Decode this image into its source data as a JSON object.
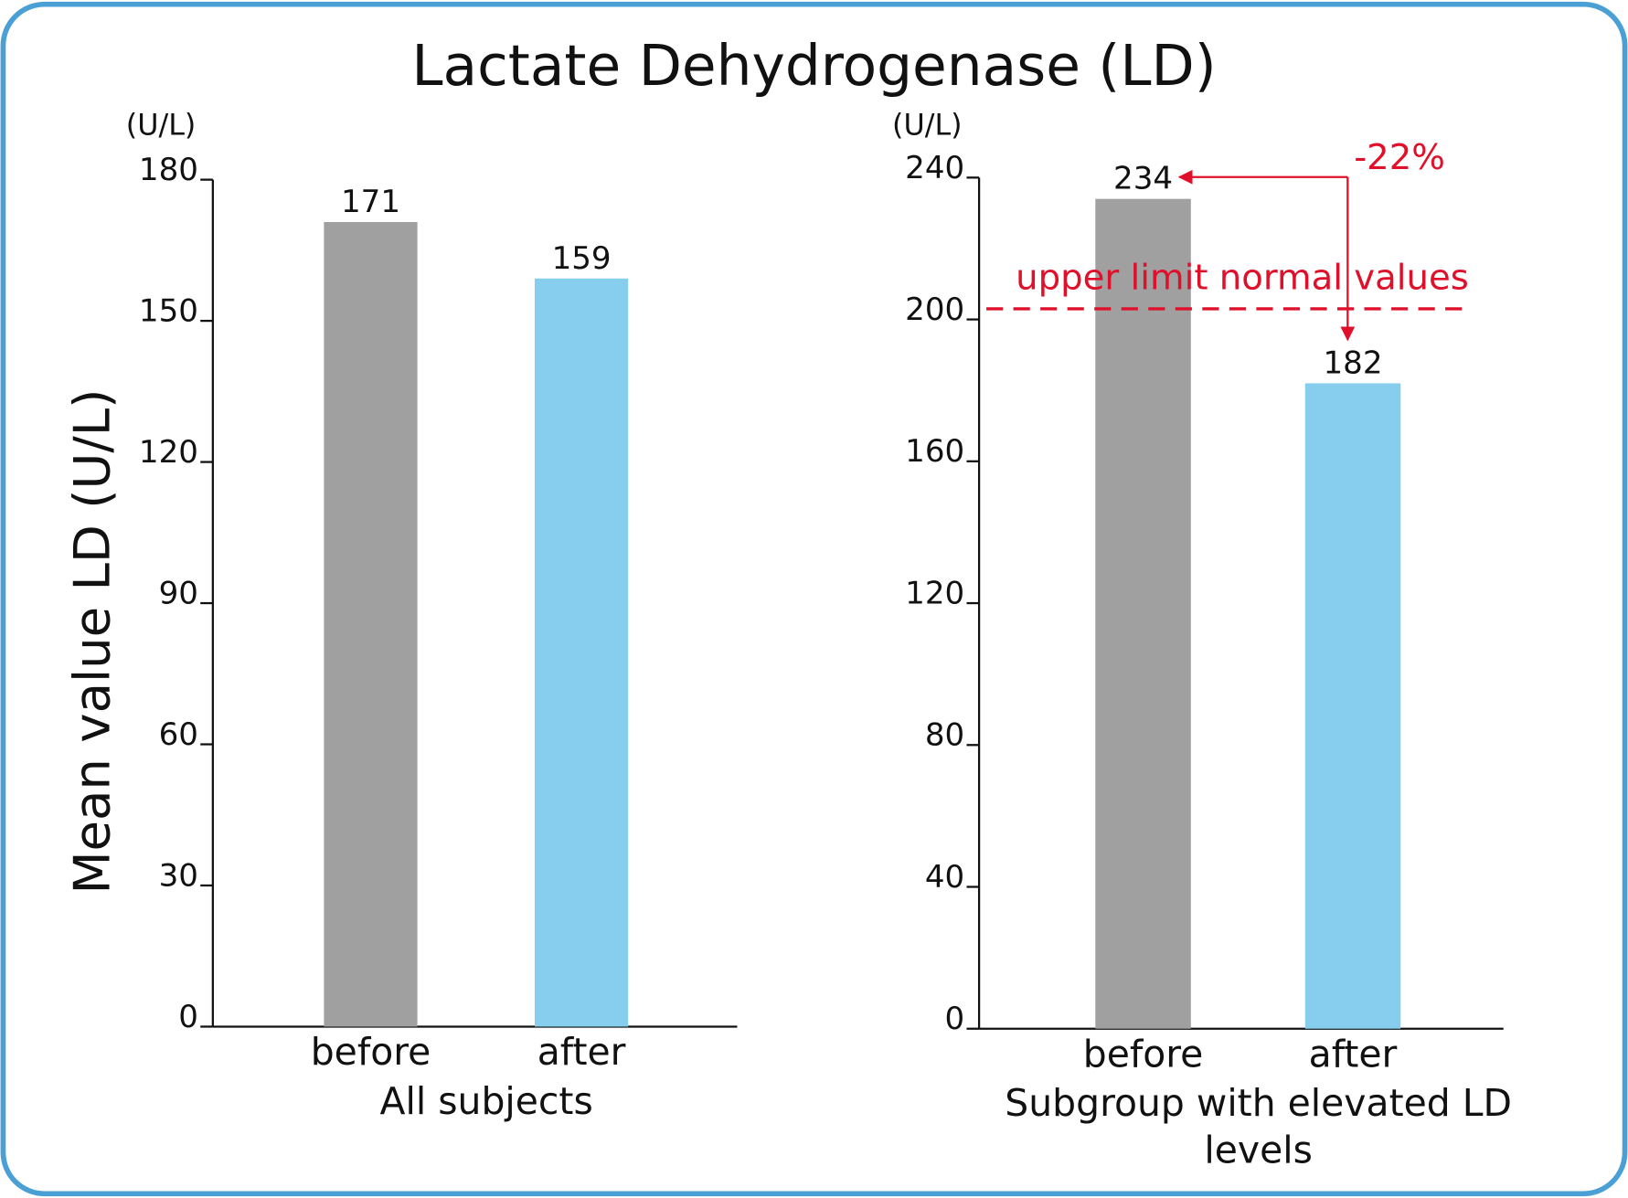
{
  "title": "Lactate Dehydrogenase (LD)",
  "ylabel": "Mean value LD (U/L)",
  "chart_data": [
    {
      "type": "bar",
      "unit": "(U/L)",
      "xlabel": "All subjects",
      "categories": [
        "before",
        "after"
      ],
      "values": [
        171,
        159
      ],
      "colors": [
        "#a0a0a0",
        "#87ceee"
      ],
      "ylim": [
        0,
        180
      ],
      "yticks": [
        0,
        30,
        60,
        90,
        120,
        150,
        180
      ]
    },
    {
      "type": "bar",
      "unit": "(U/L)",
      "xlabel": "Subgroup with elevated LD levels",
      "categories": [
        "before",
        "after"
      ],
      "values": [
        234,
        182
      ],
      "colors": [
        "#a0a0a0",
        "#87ceee"
      ],
      "ylim": [
        0,
        240
      ],
      "yticks": [
        0,
        40,
        80,
        120,
        160,
        200,
        240
      ],
      "reference_line": {
        "value": 203,
        "label": "upper limit normal values",
        "color": "#e0102a"
      },
      "change_annotation": "-22%"
    }
  ]
}
